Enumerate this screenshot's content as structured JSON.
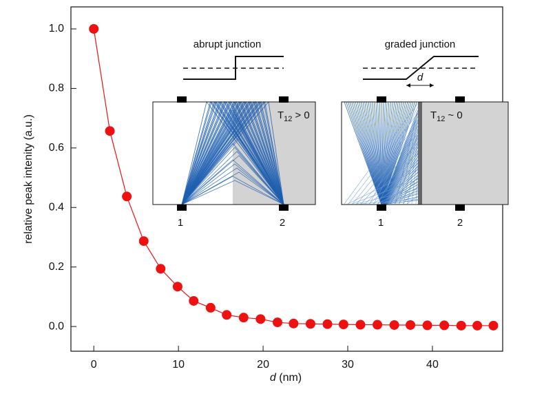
{
  "chart_data": {
    "type": "line",
    "markers": true,
    "color": "#ee1111",
    "xlabel_var": "d",
    "xlabel_unit": "(nm)",
    "ylabel": "relative peak intenity (a.u.)",
    "x": [
      0,
      1.9,
      3.9,
      5.9,
      7.9,
      9.9,
      11.8,
      13.8,
      15.7,
      17.7,
      19.7,
      21.7,
      23.6,
      25.6,
      27.6,
      29.5,
      31.5,
      33.5,
      35.5,
      37.4,
      39.4,
      41.4,
      43.4,
      45.3,
      47.2
    ],
    "values": [
      1.0,
      0.657,
      0.437,
      0.287,
      0.194,
      0.134,
      0.086,
      0.063,
      0.039,
      0.03,
      0.025,
      0.014,
      0.01,
      0.009,
      0.008,
      0.007,
      0.006,
      0.006,
      0.005,
      0.005,
      0.004,
      0.004,
      0.003,
      0.003,
      0.003
    ],
    "xlim": [
      -2.7,
      48.3
    ],
    "xticks": [
      0,
      10,
      20,
      30,
      40
    ],
    "ylim": [
      -0.083,
      1.074
    ],
    "yticks": [
      {
        "value": 0,
        "label": "0.0"
      },
      0.2,
      0.4,
      0.6,
      0.8,
      {
        "value": 1,
        "label": "1.0"
      }
    ],
    "insets": [
      {
        "title": "abrupt junction",
        "transmission": {
          "symbol": "T",
          "subscript": "12",
          "relation": "> 0"
        },
        "contacts": [
          "1",
          "2"
        ]
      },
      {
        "title": "graded junction",
        "transmission": {
          "symbol": "T",
          "subscript": "12",
          "relation": "~ 0"
        },
        "contacts": [
          "1",
          "2"
        ],
        "width_label": "d"
      }
    ]
  }
}
